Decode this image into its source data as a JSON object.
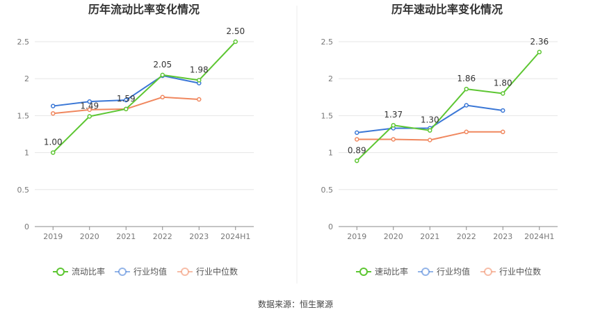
{
  "source_label": "数据来源：恒生聚源",
  "chart_data": [
    {
      "type": "line",
      "title": "历年流动比率变化情况",
      "categories": [
        "2019",
        "2020",
        "2021",
        "2022",
        "2023",
        "2024H1"
      ],
      "ylim": [
        0,
        2.5
      ],
      "yticks": [
        0,
        0.5,
        1,
        1.5,
        2,
        2.5
      ],
      "ytick_labels": [
        "0",
        "0.5",
        "1",
        "1.5",
        "2",
        "2.5"
      ],
      "grid": true,
      "legend_position": "bottom",
      "series": [
        {
          "name": "流动比率",
          "color": "#5dc632",
          "values": [
            1.0,
            1.49,
            1.59,
            2.05,
            1.98,
            2.5
          ],
          "labels": [
            "1.00",
            "1.49",
            "1.59",
            "2.05",
            "1.98",
            "2.50"
          ]
        },
        {
          "name": "行业均值",
          "color": "#3a77d6",
          "values": [
            1.63,
            1.69,
            1.71,
            2.04,
            1.94,
            null
          ]
        },
        {
          "name": "行业中位数",
          "color": "#f0875e",
          "values": [
            1.53,
            1.58,
            1.59,
            1.75,
            1.72,
            null
          ]
        }
      ]
    },
    {
      "type": "line",
      "title": "历年速动比率变化情况",
      "categories": [
        "2019",
        "2020",
        "2021",
        "2022",
        "2023",
        "2024H1"
      ],
      "ylim": [
        0,
        2.5
      ],
      "yticks": [
        0,
        0.5,
        1,
        1.5,
        2,
        2.5
      ],
      "ytick_labels": [
        "0",
        "0.5",
        "1",
        "1.5",
        "2",
        "2.5"
      ],
      "grid": true,
      "legend_position": "bottom",
      "series": [
        {
          "name": "速动比率",
          "color": "#5dc632",
          "values": [
            0.89,
            1.37,
            1.3,
            1.86,
            1.8,
            2.36
          ],
          "labels": [
            "0.89",
            "1.37",
            "1.30",
            "1.86",
            "1.80",
            "2.36"
          ]
        },
        {
          "name": "行业均值",
          "color": "#3a77d6",
          "values": [
            1.27,
            1.33,
            1.33,
            1.64,
            1.57,
            null
          ]
        },
        {
          "name": "行业中位数",
          "color": "#f0875e",
          "values": [
            1.18,
            1.18,
            1.17,
            1.28,
            1.28,
            null
          ]
        }
      ]
    }
  ]
}
